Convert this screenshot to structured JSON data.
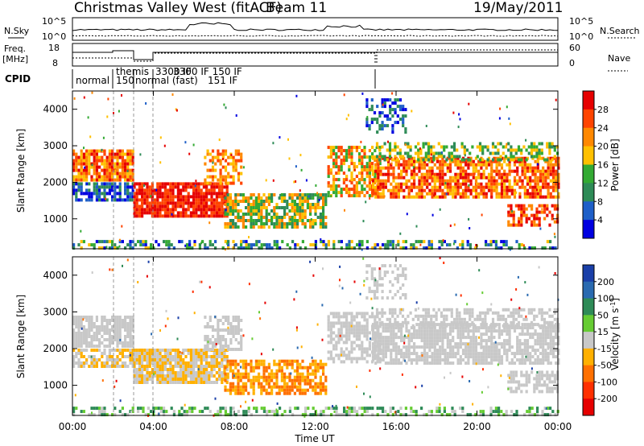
{
  "header": {
    "title": "Christmas Valley West (fitACF)",
    "beam": "Beam 11",
    "date": "19/May/2011"
  },
  "top_panels": {
    "nsky_label": "N.Sky",
    "nsearch_label": "N.Search",
    "count_top_tick": "10^5",
    "count_bottom_tick": "10^0",
    "count_top_tick_right": "10^5",
    "count_bottom_tick_right": "10^0",
    "freq_label_1": "Freq.",
    "freq_label_2": "[MHz]",
    "freq_tick_top": "18",
    "freq_tick_bottom": "8",
    "nave_tick_top": "60",
    "nave_tick_bottom": "0",
    "nave_label": "Nave",
    "cpid_label": "CPID",
    "modes": [
      "normal",
      "themis",
      "150",
      "normal (fast)",
      "3300 IF",
      "3300 IF 150 IF",
      "151 IF"
    ]
  },
  "chart_data": [
    {
      "type": "heatmap",
      "ylabel": "Slant Range [km]",
      "xlabel": "",
      "ylim": [
        180,
        4500
      ],
      "yticks": [
        "4000",
        "3000",
        "2000",
        "1000"
      ],
      "colorbar": {
        "label": "Power [dB]",
        "ticks": [
          "28",
          "24",
          "20",
          "16",
          "12",
          "8",
          "4"
        ],
        "colors": [
          "#e60000",
          "#ff4400",
          "#ff8800",
          "#ffc000",
          "#33aa33",
          "#2e8b57",
          "#1e5fc8",
          "#0000e0"
        ]
      }
    },
    {
      "type": "heatmap",
      "ylabel": "Slant Range [km]",
      "xlabel": "Time UT",
      "ylim": [
        180,
        4500
      ],
      "yticks": [
        "4000",
        "3000",
        "2000",
        "1000"
      ],
      "xticks": [
        "00:00",
        "04:00",
        "08:00",
        "12:00",
        "16:00",
        "20:00",
        "00:00"
      ],
      "colorbar": {
        "label": "Velocity [m s",
        "label_sup": "-1",
        "label_end": "]",
        "ticks": [
          "200",
          "100",
          "50",
          "15",
          "-15",
          "-50",
          "-100",
          "-200"
        ],
        "colors": [
          "#1a3fa8",
          "#2a6ab0",
          "#2e8b57",
          "#66cc33",
          "#c8c8c8",
          "#ffb000",
          "#ff7000",
          "#ff3000",
          "#e60000"
        ]
      }
    }
  ]
}
